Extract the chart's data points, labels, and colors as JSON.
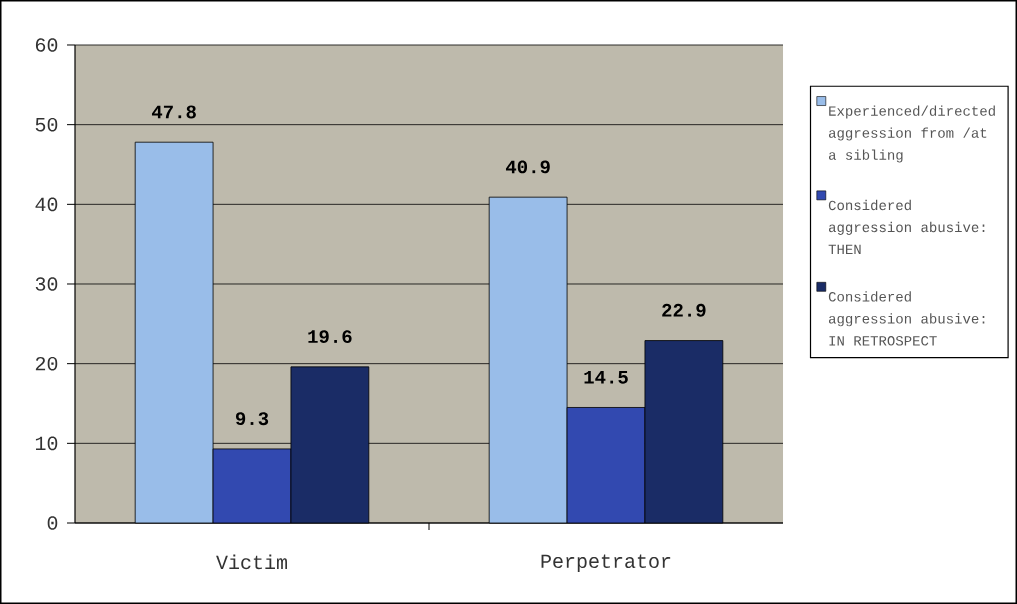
{
  "chart_data": {
    "type": "bar",
    "categories": [
      "Victim",
      "Perpetrator"
    ],
    "series": [
      {
        "name": "Experienced/directed aggression from /at a sibling",
        "color": "#99bde9",
        "values": [
          47.8,
          40.9
        ]
      },
      {
        "name": "Considered aggression abusive: THEN",
        "color": "#3249b0",
        "values": [
          9.3,
          14.5
        ]
      },
      {
        "name": "Considered aggression abusive: IN RETROSPECT",
        "color": "#1a2c66",
        "values": [
          19.6,
          22.9
        ]
      }
    ],
    "ylim": [
      0,
      60
    ],
    "yticks": [
      0,
      10,
      20,
      30,
      40,
      50,
      60
    ],
    "grid": "y",
    "legend": "right",
    "data_labels": true
  }
}
